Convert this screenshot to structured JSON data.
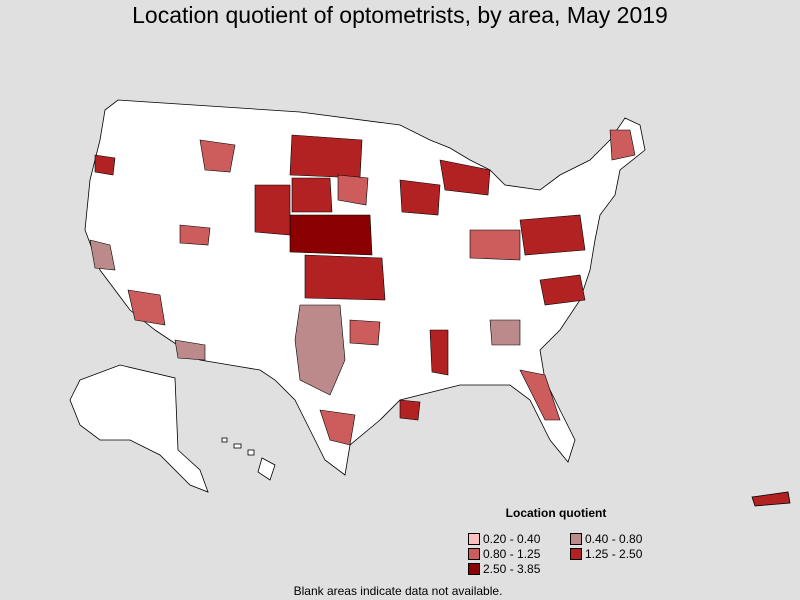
{
  "title": "Location quotient of optometrists, by area, May 2019",
  "legend": {
    "title": "Location quotient",
    "items": [
      {
        "label": "0.20 - 0.40",
        "color": "#ffc0c0"
      },
      {
        "label": "0.40 - 0.80",
        "color": "#bc8a8a"
      },
      {
        "label": "0.80 - 1.25",
        "color": "#cd5c5c"
      },
      {
        "label": "1.25 - 2.50",
        "color": "#b22222"
      },
      {
        "label": "2.50 - 3.85",
        "color": "#8b0000"
      }
    ]
  },
  "note": "Blank areas indicate data not available.",
  "colors": {
    "background": "#e0e0e0",
    "no_data": "#ffffff",
    "border": "#000000"
  }
}
